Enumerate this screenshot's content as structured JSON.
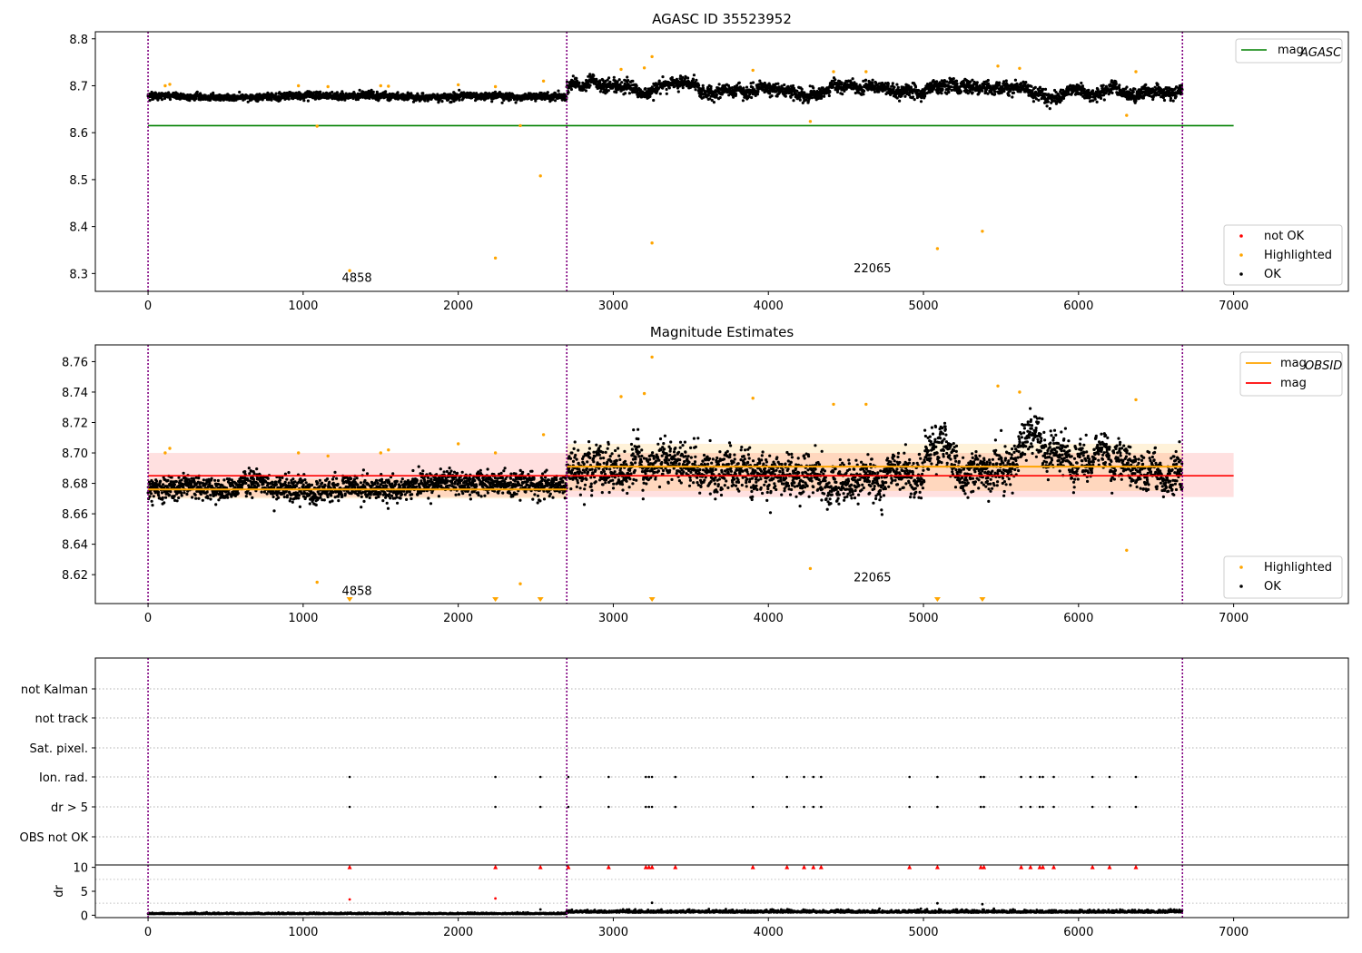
{
  "chart_data": [
    {
      "type": "scatter",
      "title": "AGASC ID 35523952",
      "xlim": [
        -340,
        7740
      ],
      "ylim": [
        8.262,
        8.815
      ],
      "xticks": [
        0,
        1000,
        2000,
        3000,
        4000,
        5000,
        6000,
        7000
      ],
      "yticks": [
        8.3,
        8.4,
        8.5,
        8.6,
        8.7,
        8.8
      ],
      "vlines_x": [
        0,
        2700,
        6670
      ],
      "hline": {
        "name": "mag",
        "subscript": "AGASC",
        "y": 8.615,
        "x": [
          0,
          7000
        ],
        "color": "#008000"
      },
      "ok_segments": [
        {
          "x_start": 0,
          "x_end": 2700,
          "mean": 8.677,
          "spread": 0.007
        },
        {
          "x_start": 2700,
          "x_end": 6670,
          "mean": 8.692,
          "spread": 0.012
        }
      ],
      "highlighted_points": [
        [
          110,
          8.7
        ],
        [
          140,
          8.703
        ],
        [
          970,
          8.7
        ],
        [
          1160,
          8.698
        ],
        [
          1500,
          8.7
        ],
        [
          1550,
          8.699
        ],
        [
          2000,
          8.702
        ],
        [
          2240,
          8.698
        ],
        [
          2550,
          8.71
        ],
        [
          3050,
          8.735
        ],
        [
          3200,
          8.738
        ],
        [
          3250,
          8.762
        ],
        [
          3900,
          8.733
        ],
        [
          4420,
          8.73
        ],
        [
          4630,
          8.73
        ],
        [
          5480,
          8.742
        ],
        [
          5620,
          8.737
        ],
        [
          6370,
          8.73
        ],
        [
          1090,
          8.614
        ],
        [
          2400,
          8.615
        ],
        [
          4270,
          8.624
        ],
        [
          6310,
          8.637
        ],
        [
          2530,
          8.508
        ],
        [
          2240,
          8.333
        ],
        [
          1300,
          8.306
        ],
        [
          3250,
          8.365
        ],
        [
          5090,
          8.353
        ],
        [
          5380,
          8.39
        ]
      ],
      "annotations": [
        {
          "text": "4858",
          "x": 1250,
          "y": 8.29
        },
        {
          "text": "22065",
          "x": 4550,
          "y": 8.31
        }
      ],
      "legend_top": [
        {
          "label": "mag",
          "subscript": "AGASC",
          "color": "#008000"
        }
      ],
      "legend_bottom": [
        {
          "label": "not OK",
          "color": "#ff0000"
        },
        {
          "label": "Highlighted",
          "color": "#ffa500"
        },
        {
          "label": "OK",
          "color": "#000000"
        }
      ]
    },
    {
      "type": "scatter",
      "title": "Magnitude Estimates",
      "xlim": [
        -340,
        7740
      ],
      "ylim": [
        8.601,
        8.771
      ],
      "xticks": [
        0,
        1000,
        2000,
        3000,
        4000,
        5000,
        6000,
        7000
      ],
      "yticks": [
        8.62,
        8.64,
        8.66,
        8.68,
        8.7,
        8.72,
        8.74,
        8.76
      ],
      "vlines_x": [
        0,
        2700,
        6670
      ],
      "mag_band": {
        "name": "mag",
        "y": 8.685,
        "low": 8.671,
        "high": 8.7,
        "x": [
          0,
          7000
        ],
        "color": "#ff0000"
      },
      "obsid_mags": [
        {
          "x_start": 0,
          "x_end": 2700,
          "y": 8.676,
          "low": 8.67,
          "high": 8.683
        },
        {
          "x_start": 2700,
          "x_end": 6670,
          "y": 8.691,
          "low": 8.675,
          "high": 8.706
        }
      ],
      "ok_segments": [
        {
          "x_start": 0,
          "x_end": 2700,
          "mean": 8.677,
          "spread": 0.007
        },
        {
          "x_start": 2700,
          "x_end": 6670,
          "mean": 8.692,
          "spread": 0.012
        }
      ],
      "highlighted_points": [
        [
          110,
          8.7
        ],
        [
          140,
          8.703
        ],
        [
          970,
          8.7
        ],
        [
          1160,
          8.698
        ],
        [
          1500,
          8.7
        ],
        [
          1550,
          8.702
        ],
        [
          2000,
          8.706
        ],
        [
          2240,
          8.7
        ],
        [
          2550,
          8.712
        ],
        [
          3050,
          8.737
        ],
        [
          3200,
          8.739
        ],
        [
          3250,
          8.763
        ],
        [
          3900,
          8.736
        ],
        [
          4420,
          8.732
        ],
        [
          4630,
          8.732
        ],
        [
          5480,
          8.744
        ],
        [
          5620,
          8.74
        ],
        [
          6370,
          8.735
        ],
        [
          1090,
          8.615
        ],
        [
          2400,
          8.614
        ],
        [
          4270,
          8.624
        ],
        [
          6310,
          8.636
        ]
      ],
      "offscale_markers_x": [
        1300,
        2240,
        2530,
        3250,
        5090,
        5380
      ],
      "annotations": [
        {
          "text": "4858",
          "x": 1250,
          "y": 8.609
        },
        {
          "text": "22065",
          "x": 4550,
          "y": 8.618
        }
      ],
      "legend_top": [
        {
          "label": "mag",
          "subscript": "OBSID",
          "color": "#ffa500"
        },
        {
          "label": "mag",
          "subscript": "",
          "color": "#ff0000"
        }
      ],
      "legend_bottom": [
        {
          "label": "Highlighted",
          "color": "#ffa500"
        },
        {
          "label": "OK",
          "color": "#000000"
        }
      ]
    },
    {
      "type": "scatter",
      "title": "",
      "xlim": [
        -340,
        7740
      ],
      "categories": [
        "not Kalman",
        "not track",
        "Sat. pixel.",
        "Ion. rad.",
        "dr > 5",
        "OBS not OK"
      ],
      "vlines_x": [
        0,
        2700,
        6670
      ],
      "flag_x": {
        "Ion. rad.": [
          1300,
          2240,
          2530,
          2710,
          2970,
          3210,
          3230,
          3250,
          3400,
          3900,
          4120,
          4230,
          4290,
          4340,
          4910,
          5090,
          5370,
          5390,
          5630,
          5690,
          5750,
          5770,
          5840,
          6090,
          6200,
          6370
        ],
        "dr > 5": [
          1300,
          2240,
          2530,
          2710,
          2970,
          3210,
          3230,
          3250,
          3400,
          3900,
          4120,
          4230,
          4290,
          4340,
          4910,
          5090,
          5370,
          5390,
          5630,
          5690,
          5750,
          5770,
          5840,
          6090,
          6200,
          6370
        ]
      }
    },
    {
      "type": "scatter",
      "title": "",
      "ylabel": "dr",
      "xlim": [
        -340,
        7740
      ],
      "ylim": [
        -0.5,
        10.5
      ],
      "xticks": [
        0,
        1000,
        2000,
        3000,
        4000,
        5000,
        6000,
        7000
      ],
      "yticks": [
        0,
        5,
        10
      ],
      "vlines_x": [
        0,
        2700,
        6670
      ],
      "clipped_x": [
        1300,
        2240,
        2530,
        2710,
        2970,
        3210,
        3230,
        3250,
        3400,
        3900,
        4120,
        4230,
        4290,
        4340,
        4910,
        5090,
        5370,
        5390,
        5630,
        5690,
        5750,
        5770,
        5840,
        6090,
        6200,
        6370
      ],
      "outlier_points": [
        [
          1300,
          3.3
        ],
        [
          2240,
          3.5
        ],
        [
          3250,
          2.6
        ],
        [
          5090,
          2.5
        ],
        [
          5380,
          2.3
        ],
        [
          2530,
          1.2
        ]
      ],
      "baseline_segments": [
        {
          "x_start": 0,
          "x_end": 2700,
          "mean": 0.25,
          "spread": 0.12
        },
        {
          "x_start": 2700,
          "x_end": 6670,
          "mean": 0.55,
          "spread": 0.25
        }
      ]
    }
  ]
}
